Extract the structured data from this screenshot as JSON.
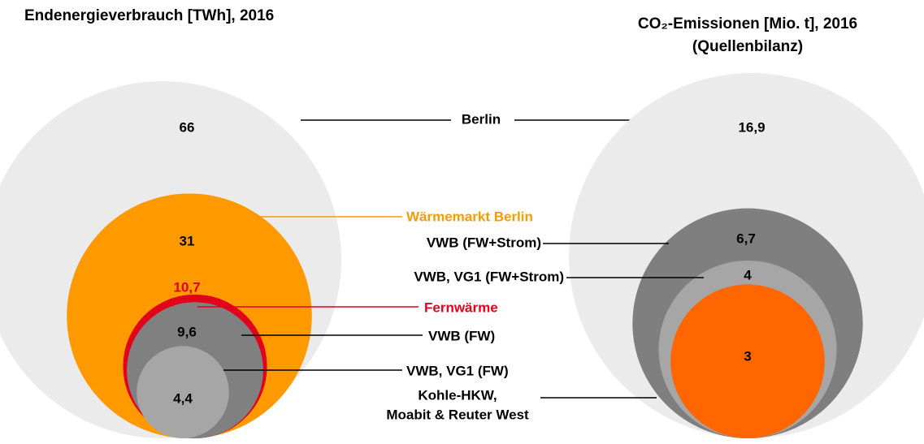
{
  "chart_data": [
    {
      "type": "nested-circles",
      "title": "Endenergieverbrauch [TWh], 2016",
      "categories": [
        "Berlin",
        "Wärmemarkt Berlin",
        "Fernwärme",
        "VWB (FW)",
        "VWB, VG1 (FW)"
      ],
      "values": [
        66,
        31,
        10.7,
        9.6,
        4.4
      ],
      "value_labels": [
        "66",
        "31",
        "10,7",
        "9,6",
        "4,4"
      ],
      "colors": [
        "#ebebeb",
        "#ff9900",
        "#e3001b",
        "#808080",
        "#a6a6a6"
      ],
      "label_colors": [
        "#000000",
        "#f59c00",
        "#e3001b",
        "#000000",
        "#000000"
      ],
      "value_label_colors": [
        "#000000",
        "#000000",
        "#e3001b",
        "#000000",
        "#000000"
      ]
    },
    {
      "type": "nested-circles",
      "title": "CO₂-Emissionen [Mio. t], 2016",
      "subtitle": "(Quellenbilanz)",
      "categories": [
        null,
        "VWB (FW+Strom)",
        "VWB, VG1 (FW+Strom)",
        [
          "Kohle-HKW,",
          "Moabit & Reuter West"
        ]
      ],
      "values": [
        16.9,
        6.7,
        4,
        3
      ],
      "value_labels": [
        "16,9",
        "6,7",
        "4",
        "3"
      ],
      "colors": [
        "#ebebeb",
        "#7f7f7f",
        "#a6a6a6",
        "#ff6600"
      ],
      "label_colors": [
        "#000000",
        "#000000",
        "#000000",
        "#000000"
      ],
      "value_label_colors": [
        "#000000",
        "#000000",
        "#000000",
        "#000000"
      ]
    }
  ]
}
